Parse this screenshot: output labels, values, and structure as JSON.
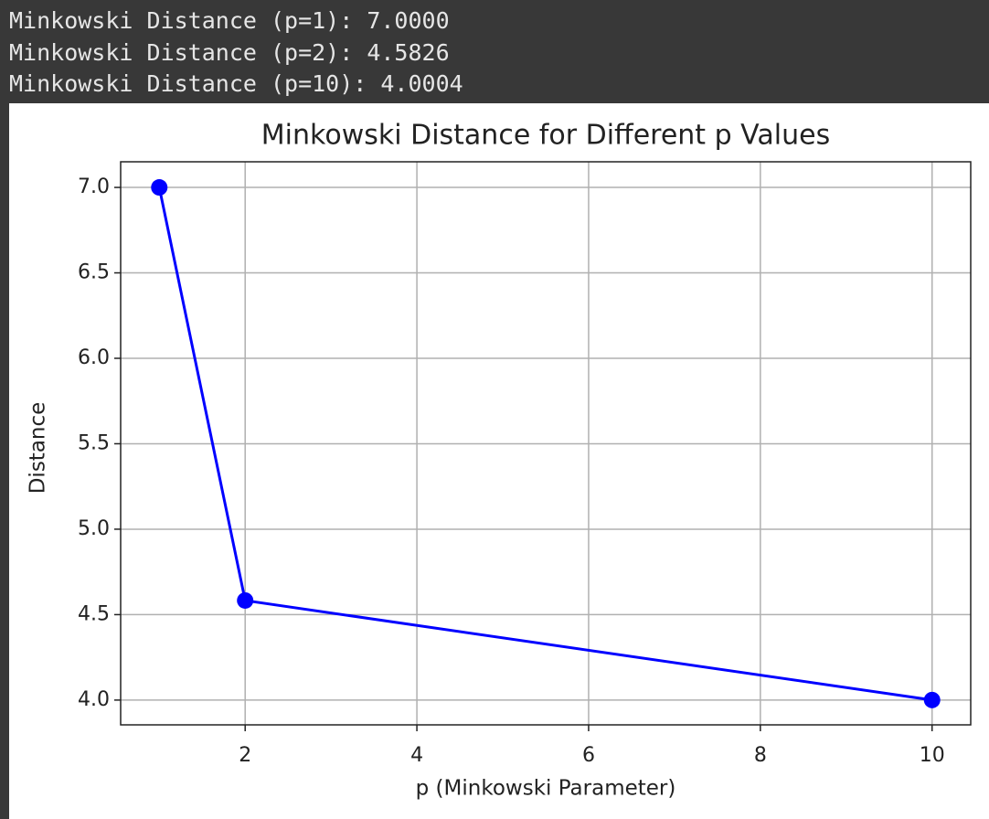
{
  "console": {
    "lines": [
      "Minkowski Distance (p=1): 7.0000",
      "Minkowski Distance (p=2): 4.5826",
      "Minkowski Distance (p=10): 4.0004"
    ]
  },
  "chart_data": {
    "type": "line",
    "title": "Minkowski Distance for Different p Values",
    "x_label": "p (Minkowski Parameter)",
    "y_label": "Distance",
    "x": [
      1,
      2,
      10
    ],
    "series": [
      {
        "color": "#0000ff",
        "values": [
          7.0,
          4.5826,
          4.0004
        ]
      }
    ],
    "xlim": [
      0.55,
      10.45
    ],
    "ylim": [
      3.855,
      7.15
    ],
    "xticks": [
      2,
      4,
      6,
      8,
      10
    ],
    "yticks": [
      {
        "value": 4.0,
        "label": "4.0"
      },
      {
        "value": 4.5,
        "label": "4.5"
      },
      {
        "value": 5.0,
        "label": "5.0"
      },
      {
        "value": 5.5,
        "label": "5.5"
      },
      {
        "value": 6.0,
        "label": "6.0"
      },
      {
        "value": 6.5,
        "label": "6.5"
      },
      {
        "value": 7.0,
        "label": "7.0"
      }
    ],
    "grid": true,
    "marker": "circle"
  }
}
